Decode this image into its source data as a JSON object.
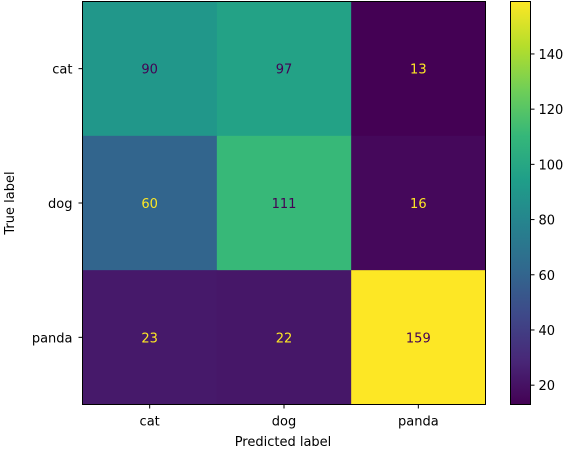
{
  "chart_data": {
    "type": "heatmap",
    "row_labels": [
      "cat",
      "dog",
      "panda"
    ],
    "col_labels": [
      "cat",
      "dog",
      "panda"
    ],
    "values": [
      [
        90,
        97,
        13
      ],
      [
        60,
        111,
        16
      ],
      [
        23,
        22,
        159
      ]
    ],
    "xlabel": "Predicted label",
    "ylabel": "True label",
    "colormap": "viridis",
    "vmin": 13,
    "vmax": 159,
    "colorbar_ticks": [
      20,
      40,
      60,
      80,
      100,
      120,
      140
    ]
  }
}
